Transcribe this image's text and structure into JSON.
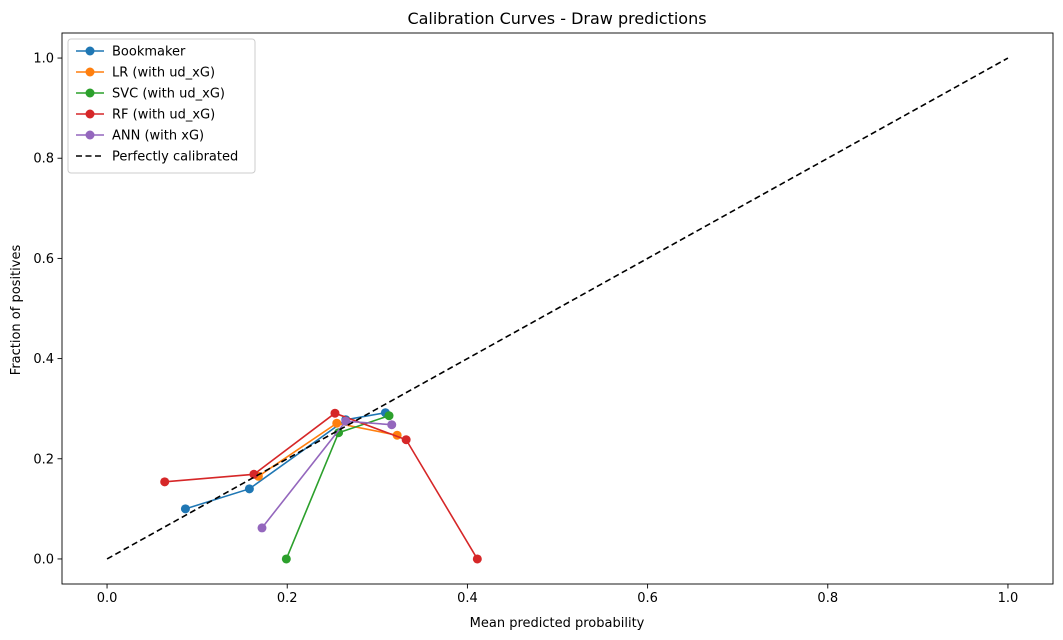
{
  "chart_data": {
    "type": "line",
    "title": "Calibration Curves - Draw predictions",
    "xlabel": "Mean predicted probability",
    "ylabel": "Fraction of positives",
    "xlim": [
      -0.05,
      1.05
    ],
    "ylim": [
      -0.05,
      1.05
    ],
    "xticks": [
      0.0,
      0.2,
      0.4,
      0.6,
      0.8,
      1.0
    ],
    "yticks": [
      0.0,
      0.2,
      0.4,
      0.6,
      0.8,
      1.0
    ],
    "xtick_labels": [
      "0.0",
      "0.2",
      "0.4",
      "0.6",
      "0.8",
      "1.0"
    ],
    "ytick_labels": [
      "0.0",
      "0.2",
      "0.4",
      "0.6",
      "0.8",
      "1.0"
    ],
    "grid": false,
    "legend_position": "upper-left",
    "series": [
      {
        "name": "Bookmaker",
        "color": "#1f77b4",
        "marker": "circle",
        "linestyle": "solid",
        "x": [
          0.087,
          0.158,
          0.265,
          0.309
        ],
        "y": [
          0.1,
          0.14,
          0.278,
          0.292
        ]
      },
      {
        "name": "LR (with ud_xG)",
        "color": "#ff7f0e",
        "marker": "circle",
        "linestyle": "solid",
        "x": [
          0.168,
          0.255,
          0.322
        ],
        "y": [
          0.165,
          0.271,
          0.247
        ]
      },
      {
        "name": "SVC (with ud_xG)",
        "color": "#2ca02c",
        "marker": "circle",
        "linestyle": "solid",
        "x": [
          0.199,
          0.257,
          0.313
        ],
        "y": [
          0.0,
          0.252,
          0.286
        ]
      },
      {
        "name": "RF (with ud_xG)",
        "color": "#d62728",
        "marker": "circle",
        "linestyle": "solid",
        "x": [
          0.064,
          0.163,
          0.253,
          0.332,
          0.411
        ],
        "y": [
          0.154,
          0.169,
          0.291,
          0.238,
          0.0
        ]
      },
      {
        "name": "ANN (with xG)",
        "color": "#9467bd",
        "marker": "circle",
        "linestyle": "solid",
        "x": [
          0.172,
          0.265,
          0.316
        ],
        "y": [
          0.062,
          0.275,
          0.268
        ]
      },
      {
        "name": "Perfectly calibrated",
        "color": "#000000",
        "marker": "none",
        "linestyle": "dashed",
        "x": [
          0.0,
          1.0
        ],
        "y": [
          0.0,
          1.0
        ]
      }
    ]
  }
}
